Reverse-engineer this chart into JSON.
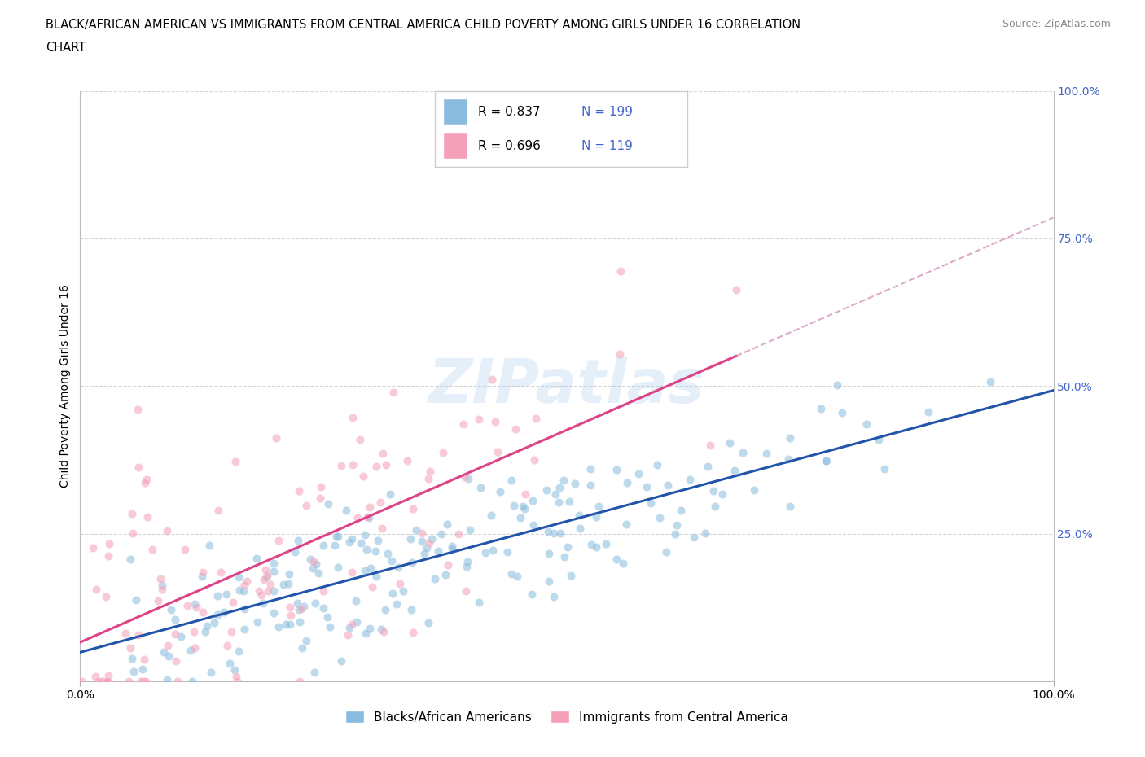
{
  "title_line1": "BLACK/AFRICAN AMERICAN VS IMMIGRANTS FROM CENTRAL AMERICA CHILD POVERTY AMONG GIRLS UNDER 16 CORRELATION",
  "title_line2": "CHART",
  "source": "Source: ZipAtlas.com",
  "ylabel": "Child Poverty Among Girls Under 16",
  "xlim": [
    0.0,
    1.0
  ],
  "ylim": [
    0.0,
    1.0
  ],
  "blue_color": "#88bbdd",
  "pink_color": "#f4a0b8",
  "blue_line_color": "#2255aa",
  "pink_line_color": "#dd4488",
  "pink_dash_color": "#ddaacc",
  "blue_R": 0.837,
  "blue_N": 199,
  "pink_R": 0.696,
  "pink_N": 119,
  "legend_label_blue": "Blacks/African Americans",
  "legend_label_pink": "Immigrants from Central America",
  "watermark": "ZIPatlas",
  "background_color": "#ffffff",
  "grid_color": "#cccccc",
  "blue_seed": 42,
  "pink_seed": 13,
  "right_label_color": "#4466cc"
}
